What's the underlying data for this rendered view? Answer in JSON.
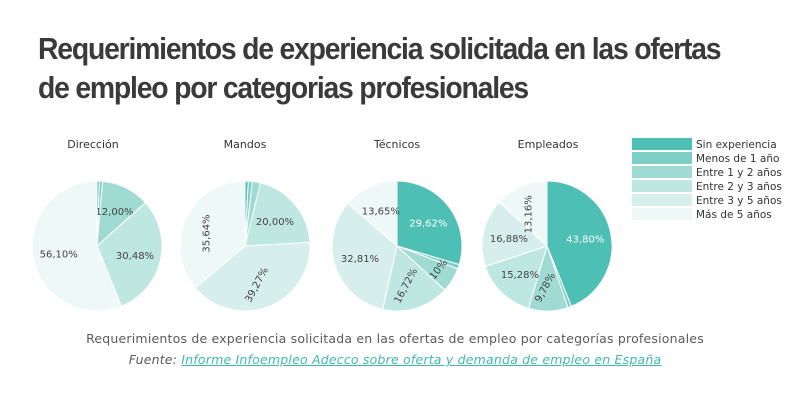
{
  "header": {
    "title_line1": "Requerimientos de experiencia solicitada en las ofertas",
    "title_line2": "de empleo por categorias profesionales"
  },
  "footer": {
    "caption": "Requerimientos de experiencia solicitada en las ofertas de empleo por categorías profesionales",
    "source_prefix": "Fuente:",
    "source_link": "Informe Infoempleo Adecco sobre oferta y demanda de empleo en España"
  },
  "chart_data": {
    "type": "pie",
    "legend_position": "right",
    "series": [
      {
        "name": "Sin experiencia",
        "color": "#4dbfb4"
      },
      {
        "name": "Menos de 1 año",
        "color": "#7dcfc6"
      },
      {
        "name": "Entre 1 y 2 años",
        "color": "#9fdbd3"
      },
      {
        "name": "Entre 2 y 3 años",
        "color": "#bfe7e2"
      },
      {
        "name": "Entre 3 y 5 años",
        "color": "#d7efec"
      },
      {
        "name": "Más de 5 años",
        "color": "#eef8f7"
      }
    ],
    "pies": [
      {
        "title": "Dirección",
        "values": [
          0.6,
          0.8,
          12.0,
          30.48,
          0.01,
          56.1
        ],
        "labels": [
          "",
          "",
          "12,00%",
          "30,48%",
          "",
          "56,10%"
        ]
      },
      {
        "title": "Mandos",
        "values": [
          0.8,
          1.0,
          2.0,
          20.0,
          39.27,
          35.64
        ],
        "labels": [
          "",
          "",
          "",
          "20,00%",
          "39,27%",
          "35,64%"
        ]
      },
      {
        "title": "Técnicos",
        "values": [
          29.62,
          1.1,
          6.1,
          16.72,
          32.81,
          13.65
        ],
        "labels": [
          "29,62%",
          "",
          "6,10%",
          "16,72%",
          "32,81%",
          "13,65%"
        ]
      },
      {
        "title": "Empleados",
        "values": [
          43.8,
          0.9,
          9.78,
          15.28,
          16.88,
          13.16
        ],
        "labels": [
          "43,80%",
          "",
          "9,78%",
          "15,28%",
          "16,88%",
          "13,16%"
        ]
      }
    ]
  }
}
